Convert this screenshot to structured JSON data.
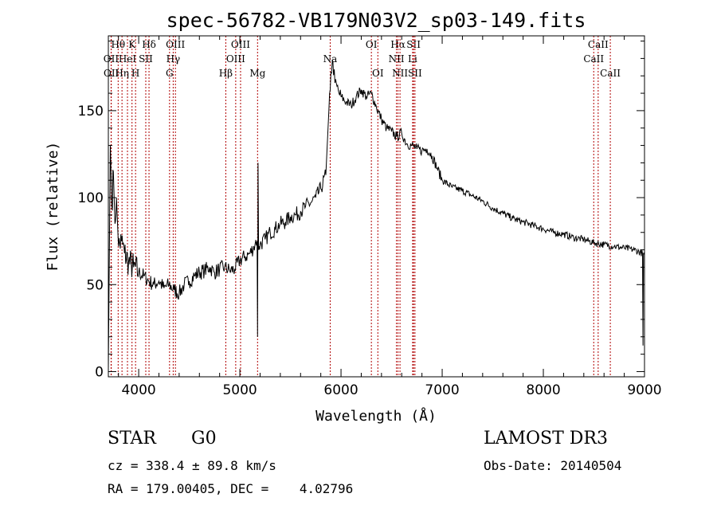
{
  "chart_data": {
    "type": "line",
    "title": "spec-56782-VB179N03V2_sp03-149.fits",
    "xlabel": "Wavelength (Å)",
    "ylabel": "Flux (relative)",
    "xlim": [
      3700,
      9000
    ],
    "ylim": [
      -3,
      193
    ],
    "xticks": [
      4000,
      5000,
      6000,
      7000,
      8000,
      9000
    ],
    "yticks": [
      0,
      50,
      100,
      150
    ],
    "grid": false,
    "series": [
      {
        "name": "spectrum",
        "color": "#000000",
        "x": [
          3700,
          3710,
          3720,
          3735,
          3750,
          3765,
          3780,
          3800,
          3830,
          3860,
          3900,
          3950,
          4000,
          4050,
          4100,
          4150,
          4200,
          4250,
          4300,
          4350,
          4400,
          4450,
          4500,
          4550,
          4600,
          4650,
          4700,
          4750,
          4800,
          4850,
          4900,
          4950,
          5000,
          5050,
          5100,
          5150,
          5170,
          5175,
          5180,
          5185,
          5190,
          5200,
          5250,
          5300,
          5350,
          5400,
          5450,
          5500,
          5550,
          5600,
          5650,
          5700,
          5750,
          5800,
          5850,
          5880,
          5900,
          5920,
          5940,
          5960,
          5980,
          6000,
          6050,
          6100,
          6150,
          6200,
          6250,
          6300,
          6350,
          6400,
          6450,
          6500,
          6550,
          6600,
          6650,
          6700,
          6750,
          6800,
          6850,
          6900,
          6950,
          7000,
          7100,
          7200,
          7300,
          7400,
          7500,
          7600,
          7700,
          7800,
          7900,
          8000,
          8100,
          8200,
          8300,
          8400,
          8500,
          8600,
          8700,
          8800,
          8900,
          8980,
          8985,
          8990,
          9000
        ],
        "y": [
          2,
          70,
          130,
          95,
          115,
          85,
          100,
          72,
          75,
          68,
          63,
          60,
          57,
          55,
          52,
          50,
          52,
          48,
          50,
          47,
          45,
          50,
          52,
          55,
          57,
          58,
          60,
          57,
          59,
          60,
          58,
          59,
          64,
          66,
          68,
          73,
          75,
          20,
          120,
          70,
          72,
          73,
          76,
          80,
          82,
          85,
          86,
          89,
          90,
          92,
          95,
          97,
          100,
          105,
          113,
          150,
          172,
          178,
          166,
          164,
          160,
          158,
          155,
          153,
          158,
          162,
          158,
          160,
          152,
          145,
          140,
          138,
          135,
          137,
          131,
          130,
          128,
          127,
          128,
          124,
          117,
          110,
          106,
          104,
          101,
          98,
          94,
          91,
          88,
          86,
          84,
          82,
          80,
          79,
          77,
          76,
          74,
          73,
          72,
          71,
          70,
          68,
          15,
          68,
          67
        ]
      }
    ],
    "spectral_lines": [
      {
        "label": "Hθ",
        "x": 3797,
        "row": 0
      },
      {
        "label": "K",
        "x": 3934,
        "row": 0
      },
      {
        "label": "Hδ",
        "x": 4102,
        "row": 0
      },
      {
        "label": "OII",
        "x": 3727,
        "row": 1
      },
      {
        "label": "HeI",
        "x": 3889,
        "row": 1
      },
      {
        "label": "SII",
        "x": 4070,
        "row": 1
      },
      {
        "label": "OII",
        "x": 3729,
        "row": 2
      },
      {
        "label": "Hη",
        "x": 3835,
        "row": 2
      },
      {
        "label": "H",
        "x": 3969,
        "row": 2
      },
      {
        "label": "OIII",
        "x": 4363,
        "row": 0
      },
      {
        "label": "Hγ",
        "x": 4341,
        "row": 1
      },
      {
        "label": "G",
        "x": 4305,
        "row": 2
      },
      {
        "label": "OIII",
        "x": 5007,
        "row": 0
      },
      {
        "label": "OIII",
        "x": 4959,
        "row": 1
      },
      {
        "label": "Hβ",
        "x": 4861,
        "row": 2
      },
      {
        "label": "Mg",
        "x": 5175,
        "row": 2
      },
      {
        "label": "Na",
        "x": 5893,
        "row": 1
      },
      {
        "label": "OI",
        "x": 6300,
        "row": 0
      },
      {
        "label": "OI",
        "x": 6364,
        "row": 2
      },
      {
        "label": "Hα",
        "x": 6563,
        "row": 0
      },
      {
        "label": "SII",
        "x": 6717,
        "row": 0
      },
      {
        "label": "NII",
        "x": 6548,
        "row": 1
      },
      {
        "label": "Li",
        "x": 6708,
        "row": 1
      },
      {
        "label": "NII",
        "x": 6583,
        "row": 2
      },
      {
        "label": "SII",
        "x": 6731,
        "row": 2
      },
      {
        "label": "CaII",
        "x": 8542,
        "row": 0
      },
      {
        "label": "CaII",
        "x": 8498,
        "row": 1
      },
      {
        "label": "CaII",
        "x": 8662,
        "row": 2
      }
    ]
  },
  "info": {
    "class_label": "STAR",
    "subclass": "G0",
    "survey": "LAMOST DR3",
    "cz_line": "cz = 338.4 ± 89.8 km/s",
    "obs_date_line": "Obs-Date: 20140504",
    "coords_line": "RA = 179.00405, DEC =    4.02796"
  },
  "colors": {
    "line_marker": "#b00000",
    "spectrum": "#000000",
    "axes": "#000000",
    "background": "#ffffff"
  }
}
